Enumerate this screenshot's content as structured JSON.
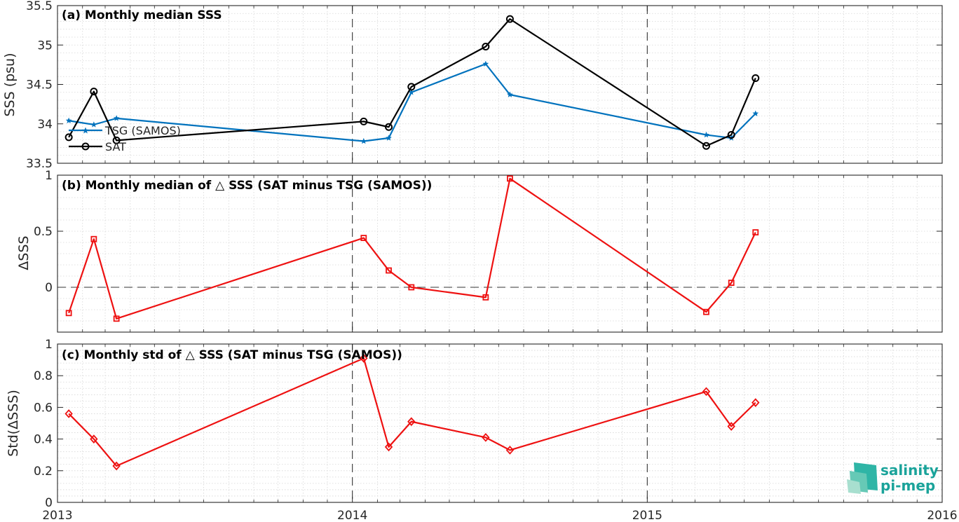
{
  "chart_data": [
    {
      "type": "line",
      "title": "(a) Monthly median SSS",
      "xlabel": "",
      "ylabel": "SSS (psu)",
      "xlim": [
        "2013-01-01",
        "2016-01-01"
      ],
      "ylim": [
        33.5,
        35.5
      ],
      "yticks": [
        "33.5",
        "34",
        "34.5",
        "35",
        "35.5"
      ],
      "grid": true,
      "legend": "bottom-left",
      "series": [
        {
          "name": "TSG (SAMOS)",
          "color": "#0072bd",
          "marker": "star",
          "x": [
            "2013-01-15",
            "2013-02-15",
            "2013-03-15",
            "2014-01-15",
            "2014-02-15",
            "2014-03-15",
            "2014-06-15",
            "2014-07-15",
            "2015-03-15",
            "2015-04-15",
            "2015-05-15"
          ],
          "values": [
            34.04,
            33.99,
            34.07,
            33.78,
            33.82,
            34.4,
            34.76,
            34.37,
            33.86,
            33.82,
            34.13
          ]
        },
        {
          "name": "SAT",
          "color": "#000000",
          "marker": "circle",
          "x": [
            "2013-01-15",
            "2013-02-15",
            "2013-03-15",
            "2014-01-15",
            "2014-02-15",
            "2014-03-15",
            "2014-06-15",
            "2014-07-15",
            "2015-03-15",
            "2015-04-15",
            "2015-05-15"
          ],
          "values": [
            33.83,
            34.41,
            33.79,
            34.03,
            33.96,
            34.47,
            34.98,
            35.33,
            33.72,
            33.86,
            34.58
          ]
        }
      ]
    },
    {
      "type": "line",
      "title": "(b) Monthly median of △ SSS (SAT minus TSG (SAMOS))",
      "xlabel": "",
      "ylabel": "ΔSSS",
      "xlim": [
        "2013-01-01",
        "2016-01-01"
      ],
      "ylim": [
        -0.4,
        1
      ],
      "yticks": [
        "0",
        "0.5",
        "1"
      ],
      "grid": true,
      "reference_line": 0,
      "series": [
        {
          "color": "#ee1111",
          "marker": "square",
          "x": [
            "2013-01-15",
            "2013-02-15",
            "2013-03-15",
            "2014-01-15",
            "2014-02-15",
            "2014-03-15",
            "2014-06-15",
            "2014-07-15",
            "2015-03-15",
            "2015-04-15",
            "2015-05-15"
          ],
          "values": [
            -0.23,
            0.43,
            -0.28,
            0.44,
            0.15,
            0.0,
            -0.09,
            0.97,
            -0.22,
            0.04,
            0.49
          ]
        }
      ]
    },
    {
      "type": "line",
      "title": "(c) Monthly std of △ SSS (SAT minus TSG (SAMOS))",
      "xlabel": "",
      "ylabel": "Std(ΔSSS)",
      "xlim": [
        "2013-01-01",
        "2016-01-01"
      ],
      "ylim": [
        0,
        1
      ],
      "yticks": [
        "0",
        "0.2",
        "0.4",
        "0.6",
        "0.8",
        "1"
      ],
      "xticks": [
        "2013",
        "2014",
        "2015",
        "2016"
      ],
      "grid": true,
      "series": [
        {
          "color": "#ee1111",
          "marker": "diamond",
          "x": [
            "2013-01-15",
            "2013-02-15",
            "2013-03-15",
            "2014-01-15",
            "2014-02-15",
            "2014-03-15",
            "2014-06-15",
            "2014-07-15",
            "2015-03-15",
            "2015-04-15",
            "2015-05-15"
          ],
          "values": [
            0.56,
            0.4,
            0.23,
            0.91,
            0.35,
            0.51,
            0.41,
            0.33,
            0.7,
            0.48,
            0.63
          ]
        }
      ]
    }
  ],
  "logo": {
    "line1": "salinity",
    "line2": "pi-mep"
  }
}
